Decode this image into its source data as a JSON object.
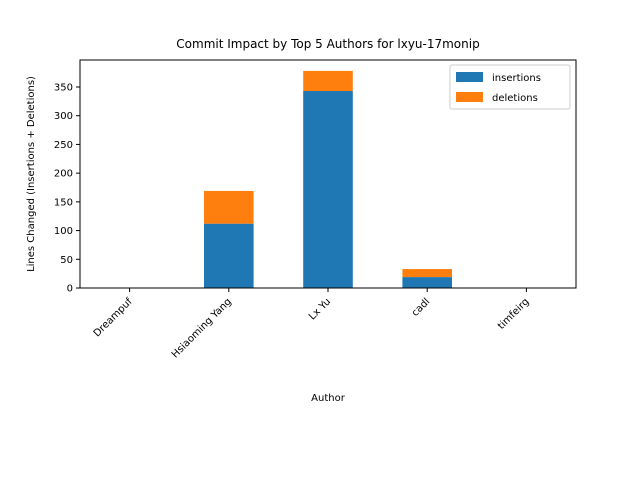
{
  "chart_data": {
    "type": "bar",
    "stacked": true,
    "title": "Commit Impact by Top 5 Authors for lxyu-17monip",
    "xlabel": "Author",
    "ylabel": "Lines Changed (Insertions + Deletions)",
    "categories": [
      "Dreampuf",
      "Hsiaoming Yang",
      "Lx Yu",
      "cadl",
      "timfeirg"
    ],
    "series": [
      {
        "name": "insertions",
        "color": "#1f77b4",
        "values": [
          0,
          112,
          343,
          19,
          0
        ]
      },
      {
        "name": "deletions",
        "color": "#ff7f0e",
        "values": [
          0,
          57,
          35,
          14,
          0
        ]
      }
    ],
    "ylim": [
      0,
      397
    ],
    "yticks": [
      0,
      50,
      100,
      150,
      200,
      250,
      300,
      350
    ],
    "legend": "top-right",
    "grid": false
  }
}
